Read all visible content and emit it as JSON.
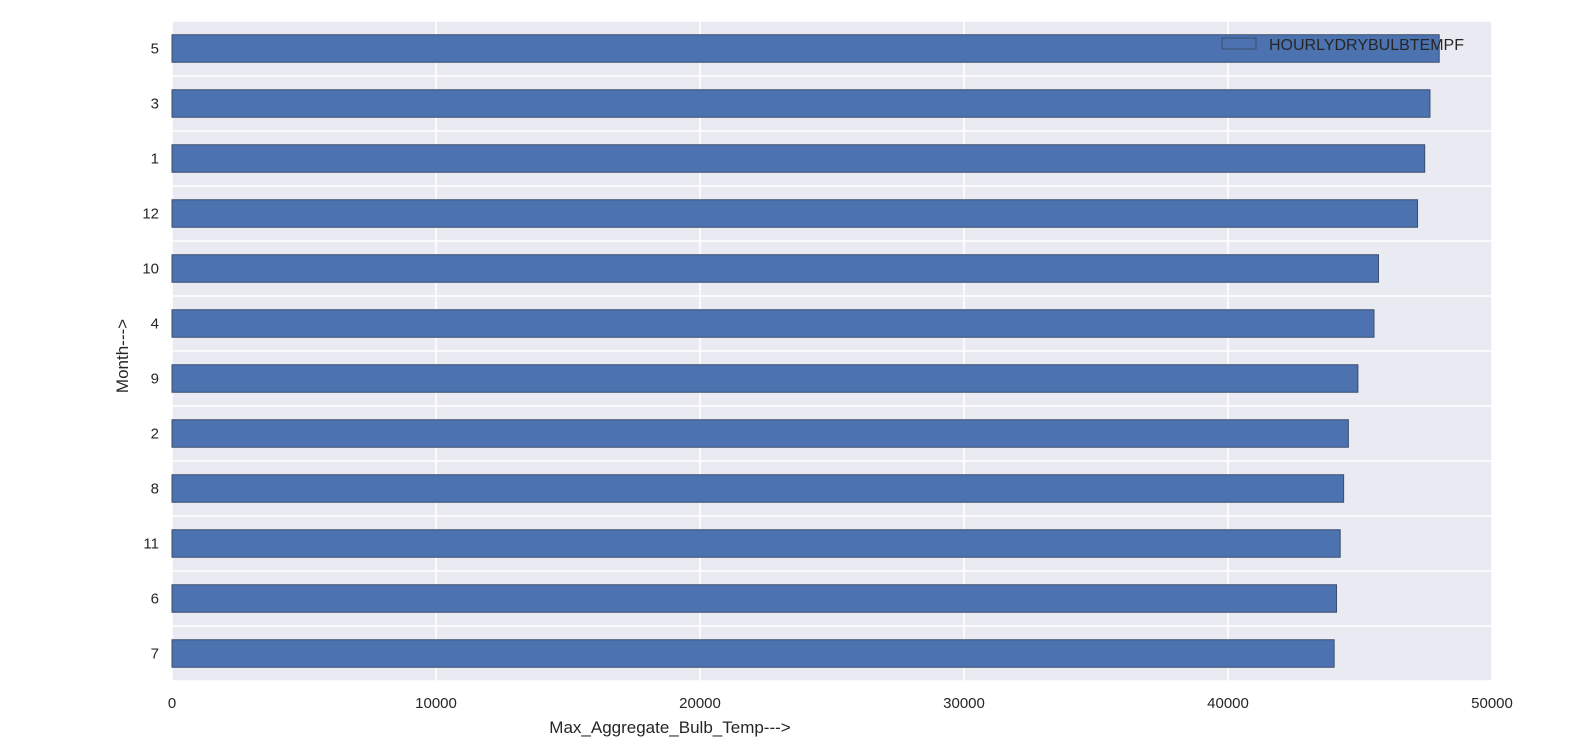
{
  "chart_data": {
    "type": "bar",
    "orientation": "horizontal",
    "categories": [
      "5",
      "3",
      "1",
      "12",
      "10",
      "4",
      "9",
      "2",
      "8",
      "11",
      "6",
      "7"
    ],
    "series": [
      {
        "name": "HOURLYDRYBULBTEMPF",
        "values": [
          48000,
          47650,
          47450,
          47180,
          45700,
          45530,
          44920,
          44560,
          44380,
          44250,
          44110,
          44020
        ]
      }
    ],
    "xlabel": "Max_Aggregate_Bulb_Temp--->",
    "ylabel": "Month--->",
    "xlim": [
      0,
      50000
    ],
    "xticks": [
      "0",
      "10000",
      "20000",
      "30000",
      "40000",
      "50000"
    ],
    "grid": true,
    "legend": "top-right",
    "colors": {
      "bar": "#4c72b0",
      "bar_edge": "#3a4d6e",
      "plot_background": "#eaeaf2",
      "grid": "#ffffff"
    }
  }
}
